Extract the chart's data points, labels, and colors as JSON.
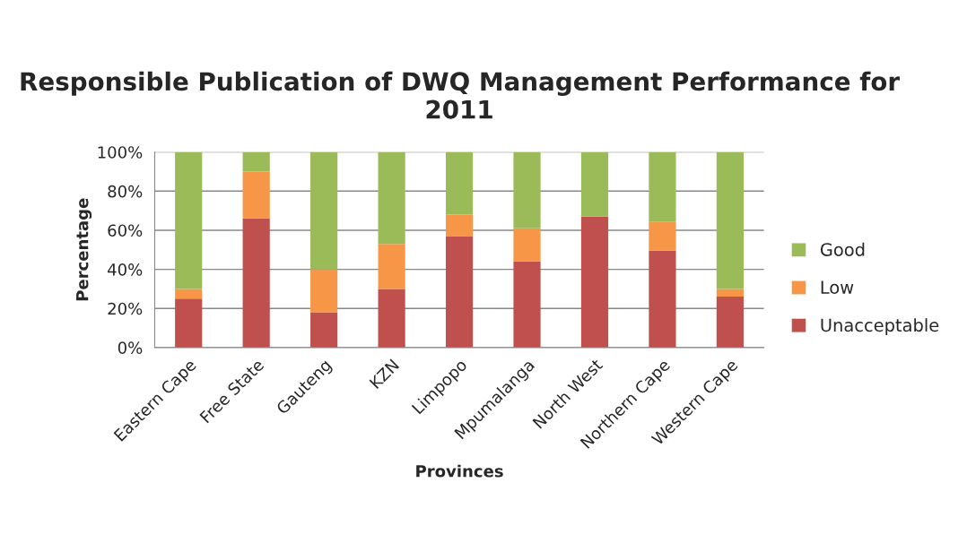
{
  "chart_data": {
    "type": "bar",
    "stacked": true,
    "title": "Responsible Publication of DWQ Management Performance for 2011",
    "xlabel": "Provinces",
    "ylabel": "Percentage",
    "categories": [
      "Eastern Cape",
      "Free State",
      "Gauteng",
      "KZN",
      "Limpopo",
      "Mpumalanga",
      "North West",
      "Northern Cape",
      "Western Cape"
    ],
    "series": [
      {
        "name": "Unacceptable",
        "color": "#c0504d",
        "values": [
          25,
          66,
          18,
          30,
          57,
          44,
          67,
          49.5,
          26
        ]
      },
      {
        "name": "Low",
        "color": "#f79646",
        "values": [
          5,
          24,
          22,
          23,
          11,
          17,
          0,
          15,
          4
        ]
      },
      {
        "name": "Good",
        "color": "#9bbb59",
        "values": [
          70,
          10,
          60,
          47,
          32,
          39,
          33,
          35.5,
          70
        ]
      }
    ],
    "ylim": [
      0,
      100
    ],
    "yticks": [
      {
        "value": 0,
        "label": "0%"
      },
      {
        "value": 20,
        "label": "20%"
      },
      {
        "value": 40,
        "label": "40%"
      },
      {
        "value": 60,
        "label": "60%"
      },
      {
        "value": 80,
        "label": "80%"
      },
      {
        "value": 100,
        "label": "100%"
      }
    ],
    "grid": "y",
    "legend": "right"
  }
}
